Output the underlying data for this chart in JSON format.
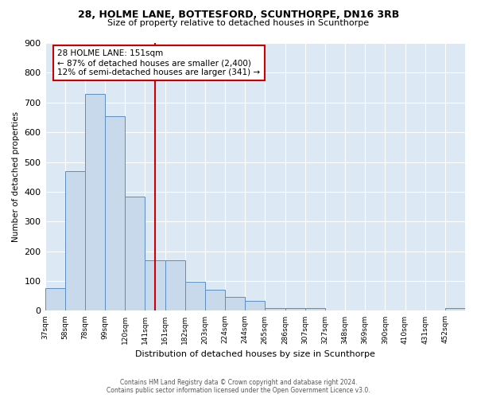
{
  "title": "28, HOLME LANE, BOTTESFORD, SCUNTHORPE, DN16 3RB",
  "subtitle": "Size of property relative to detached houses in Scunthorpe",
  "xlabel": "Distribution of detached houses by size in Scunthorpe",
  "ylabel": "Number of detached properties",
  "bar_values": [
    75,
    470,
    730,
    655,
    385,
    170,
    170,
    97,
    72,
    47,
    32,
    10,
    10,
    10,
    0,
    0,
    0,
    0,
    0,
    0,
    10
  ],
  "bin_labels": [
    "37sqm",
    "58sqm",
    "78sqm",
    "99sqm",
    "120sqm",
    "141sqm",
    "161sqm",
    "182sqm",
    "203sqm",
    "224sqm",
    "244sqm",
    "265sqm",
    "286sqm",
    "307sqm",
    "327sqm",
    "348sqm",
    "369sqm",
    "390sqm",
    "410sqm",
    "431sqm",
    "452sqm"
  ],
  "bar_color": "#c9d9ec",
  "bar_edge_color": "#5a8fc0",
  "vline_color": "#cc0000",
  "annotation_text": "28 HOLME LANE: 151sqm\n← 87% of detached houses are smaller (2,400)\n12% of semi-detached houses are larger (341) →",
  "annotation_box_color": "#ffffff",
  "annotation_box_edge": "#cc0000",
  "ylim": [
    0,
    900
  ],
  "yticks": [
    0,
    100,
    200,
    300,
    400,
    500,
    600,
    700,
    800,
    900
  ],
  "footer": "Contains HM Land Registry data © Crown copyright and database right 2024.\nContains public sector information licensed under the Open Government Licence v3.0.",
  "fig_bg_color": "#ffffff",
  "plot_bg_color": "#dce9f5"
}
